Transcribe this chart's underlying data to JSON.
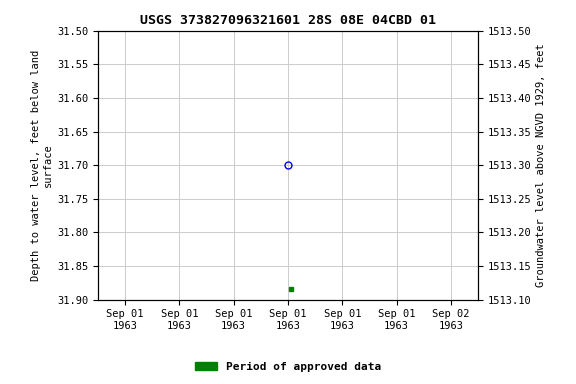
{
  "title": "USGS 373827096321601 28S 08E 04CBD 01",
  "ylabel_left": "Depth to water level, feet below land\nsurface",
  "ylabel_right": "Groundwater level above NGVD 1929, feet",
  "ylim_left": [
    31.9,
    31.5
  ],
  "ylim_right": [
    1513.1,
    1513.5
  ],
  "yticks_left": [
    31.5,
    31.55,
    31.6,
    31.65,
    31.7,
    31.75,
    31.8,
    31.85,
    31.9
  ],
  "yticks_right": [
    1513.5,
    1513.45,
    1513.4,
    1513.35,
    1513.3,
    1513.25,
    1513.2,
    1513.15,
    1513.1
  ],
  "xtick_positions": [
    0,
    1,
    2,
    3,
    4,
    5,
    6
  ],
  "xtick_labels": [
    "Sep 01\n1963",
    "Sep 01\n1963",
    "Sep 01\n1963",
    "Sep 01\n1963",
    "Sep 01\n1963",
    "Sep 01\n1963",
    "Sep 02\n1963"
  ],
  "data_blue_x": 3.0,
  "data_blue_y": 31.7,
  "data_green_x": 3.05,
  "data_green_y": 31.885,
  "legend_label": "Period of approved data",
  "legend_color": "#008000",
  "bg_color": "#ffffff",
  "grid_color": "#cccccc",
  "title_fontsize": 9.5,
  "tick_fontsize": 7.5,
  "label_fontsize": 7.5,
  "xlim": [
    -0.5,
    6.5
  ]
}
